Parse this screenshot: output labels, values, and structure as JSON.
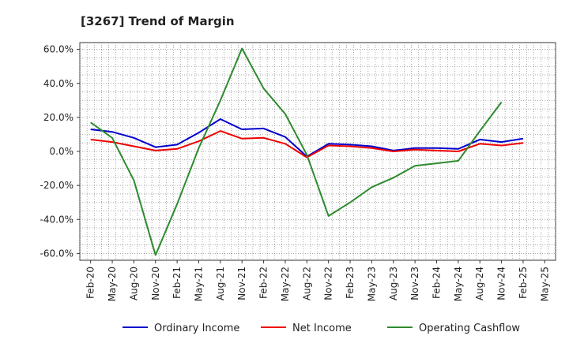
{
  "chart_data": {
    "type": "line",
    "title": "[3267]  Trend of Margin",
    "xlabel": "",
    "ylabel": "",
    "categories": [
      "Feb-20",
      "May-20",
      "Aug-20",
      "Nov-20",
      "Feb-21",
      "May-21",
      "Aug-21",
      "Nov-21",
      "Feb-22",
      "May-22",
      "Aug-22",
      "Nov-22",
      "Feb-23",
      "May-23",
      "Aug-23",
      "Nov-23",
      "Feb-24",
      "May-24",
      "Aug-24",
      "Nov-24",
      "Feb-25",
      "May-25"
    ],
    "ylim": [
      -64,
      64
    ],
    "yticks": [
      60,
      40,
      20,
      0,
      -20,
      -40,
      -60
    ],
    "ytick_labels": [
      "60.0%",
      "40.0%",
      "20.0%",
      "0.0%",
      "-20.0%",
      "-40.0%",
      "-60.0%"
    ],
    "grid": true,
    "legend_position": "bottom",
    "series": [
      {
        "name": "Ordinary Income",
        "color": "#0000cc",
        "values": [
          13.0,
          11.5,
          8.0,
          2.5,
          4.0,
          11.0,
          19.0,
          13.0,
          13.5,
          8.5,
          -3.0,
          4.5,
          4.0,
          3.0,
          0.5,
          2.0,
          2.0,
          1.5,
          7.0,
          5.5,
          7.5,
          null
        ]
      },
      {
        "name": "Net Income",
        "color": "#ee0000",
        "values": [
          7.0,
          5.5,
          3.0,
          0.5,
          1.5,
          6.0,
          12.0,
          7.5,
          8.0,
          4.5,
          -3.5,
          3.5,
          3.0,
          2.0,
          0.0,
          1.0,
          0.5,
          0.0,
          4.5,
          3.5,
          5.0,
          null
        ]
      },
      {
        "name": "Operating Cashflow",
        "color": "#2e8b2e",
        "values": [
          17.0,
          8.0,
          -17.0,
          -61.0,
          -31.0,
          2.0,
          30.0,
          60.5,
          37.0,
          22.0,
          -2.0,
          -38.0,
          -30.0,
          -21.0,
          -15.5,
          -8.5,
          -7.0,
          -5.5,
          12.0,
          29.0,
          null,
          null
        ]
      }
    ]
  }
}
